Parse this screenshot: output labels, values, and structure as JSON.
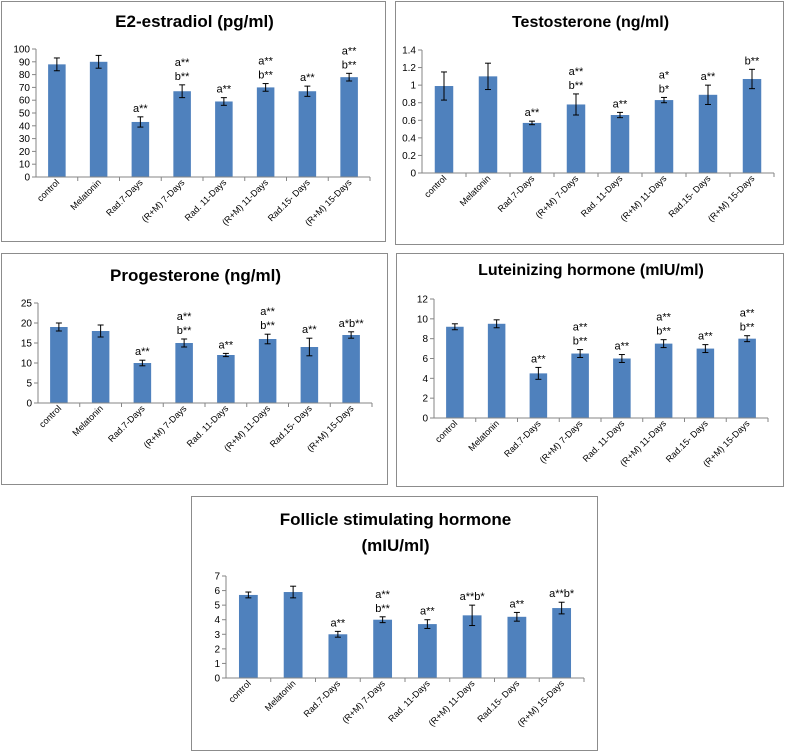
{
  "colors": {
    "bar": "#4f81bd",
    "axis": "#868686",
    "border": "#8c8c8c",
    "text": "#000000"
  },
  "chart_data": [
    {
      "type": "bar",
      "title": "E2-estradiol (pg/ml)",
      "title_lines": [
        "E2-estradiol (pg/ml)"
      ],
      "xlabel": "",
      "ylabel": "",
      "ylim": [
        0,
        100
      ],
      "yticks": [
        0,
        10,
        20,
        30,
        40,
        50,
        60,
        70,
        80,
        90,
        100
      ],
      "ytick_labels": [
        "0",
        "10",
        "20",
        "30",
        "40",
        "50",
        "60",
        "70",
        "80",
        "90",
        "100"
      ],
      "categories": [
        "control",
        "Melatonin",
        "Rad.7-Days",
        "(R+M) 7-Days",
        "Rad. 11-Days",
        "(R+M)  11-Days",
        "Rad.15- Days",
        "(R+M) 15-Days"
      ],
      "values": [
        88,
        90,
        43,
        67,
        59,
        70,
        67,
        78
      ],
      "errors": [
        5,
        5,
        4,
        5,
        3,
        3,
        4,
        3
      ],
      "annotations": [
        [],
        [],
        [
          "a**"
        ],
        [
          "a**",
          "b**"
        ],
        [
          "a**"
        ],
        [
          "a**",
          "b**"
        ],
        [
          "a**"
        ],
        [
          "a**",
          "b**"
        ]
      ]
    },
    {
      "type": "bar",
      "title": "Testosterone (ng/ml)",
      "title_lines": [
        "Testosterone (ng/ml)"
      ],
      "xlabel": "",
      "ylabel": "",
      "ylim": [
        0,
        1.4
      ],
      "yticks": [
        0,
        0.2,
        0.4,
        0.6,
        0.8,
        1,
        1.2,
        1.4
      ],
      "ytick_labels": [
        "0",
        "0.2",
        "0.4",
        "0.6",
        "0.8",
        "1",
        "1.2",
        "1.4"
      ],
      "categories": [
        "control",
        "Melatonin",
        "Rad.7-Days",
        "(R+M) 7-Days",
        "Rad. 11-Days",
        "(R+M)  11-Days",
        "Rad.15- Days",
        "(R+M) 15-Days"
      ],
      "values": [
        0.99,
        1.1,
        0.57,
        0.78,
        0.66,
        0.83,
        0.89,
        1.07
      ],
      "errors": [
        0.16,
        0.15,
        0.02,
        0.12,
        0.03,
        0.03,
        0.11,
        0.11
      ],
      "annotations": [
        [],
        [],
        [
          "a**"
        ],
        [
          "a**",
          "b**"
        ],
        [
          "a**"
        ],
        [
          "a*",
          "b*"
        ],
        [
          "a**"
        ],
        [
          "b**"
        ]
      ]
    },
    {
      "type": "bar",
      "title": "Progesterone (ng/ml)",
      "title_lines": [
        "Progesterone (ng/ml)"
      ],
      "xlabel": "",
      "ylabel": "",
      "ylim": [
        0,
        25
      ],
      "yticks": [
        0,
        5,
        10,
        15,
        20,
        25
      ],
      "ytick_labels": [
        "0",
        "5",
        "10",
        "15",
        "20",
        "25"
      ],
      "categories": [
        "control",
        "Melatonin",
        "Rad.7-Days",
        "(R+M) 7-Days",
        "Rad. 11-Days",
        "(R+M)  11-Days",
        "Rad.15- Days",
        "(R+M) 15-Days"
      ],
      "values": [
        19,
        18,
        10,
        15,
        12,
        16,
        14,
        17
      ],
      "errors": [
        1,
        1.5,
        0.7,
        1,
        0.4,
        1.2,
        2.2,
        0.8
      ],
      "annotations": [
        [],
        [],
        [
          "a**"
        ],
        [
          "a**",
          "b**"
        ],
        [
          "a**"
        ],
        [
          "a**",
          "b**"
        ],
        [
          "a**"
        ],
        [
          "a*b**"
        ]
      ]
    },
    {
      "type": "bar",
      "title": "Luteinizing hormone (mIU/ml)",
      "title_lines": [
        "Luteinizing hormone (mIU/ml)"
      ],
      "xlabel": "",
      "ylabel": "",
      "ylim": [
        0,
        12
      ],
      "yticks": [
        0,
        2,
        4,
        6,
        8,
        10,
        12
      ],
      "ytick_labels": [
        "0",
        "2",
        "4",
        "6",
        "8",
        "10",
        "12"
      ],
      "categories": [
        "control",
        "Melatonin",
        "Rad.7-Days",
        "(R+M) 7-Days",
        "Rad. 11-Days",
        "(R+M)  11-Days",
        "Rad.15- Days",
        "(R+M) 15-Days"
      ],
      "values": [
        9.2,
        9.5,
        4.5,
        6.5,
        6,
        7.5,
        7,
        8
      ],
      "errors": [
        0.3,
        0.4,
        0.6,
        0.4,
        0.4,
        0.4,
        0.4,
        0.3
      ],
      "annotations": [
        [],
        [],
        [
          "a**"
        ],
        [
          "a**",
          "b**"
        ],
        [
          "a**"
        ],
        [
          "a**",
          "b**"
        ],
        [
          "a**"
        ],
        [
          "a**",
          "b**"
        ]
      ]
    },
    {
      "type": "bar",
      "title": "Follicle stimulating hormone (mIU/ml)",
      "title_lines": [
        "Follicle stimulating hormone",
        "(mIU/ml)"
      ],
      "xlabel": "",
      "ylabel": "",
      "ylim": [
        0,
        7
      ],
      "yticks": [
        0,
        1,
        2,
        3,
        4,
        5,
        6,
        7
      ],
      "ytick_labels": [
        "0",
        "1",
        "2",
        "3",
        "4",
        "5",
        "6",
        "7"
      ],
      "categories": [
        "control",
        "Melatonin",
        "Rad.7-Days",
        "(R+M) 7-Days",
        "Rad. 11-Days",
        "(R+M)  11-Days",
        "Rad.15- Days",
        "(R+M) 15-Days"
      ],
      "values": [
        5.7,
        5.9,
        3,
        4,
        3.7,
        4.3,
        4.2,
        4.8
      ],
      "errors": [
        0.2,
        0.4,
        0.2,
        0.2,
        0.3,
        0.7,
        0.3,
        0.4
      ],
      "annotations": [
        [],
        [],
        [
          "a**"
        ],
        [
          "a**",
          "b**"
        ],
        [
          "a**"
        ],
        [
          "a**b*"
        ],
        [
          "a**"
        ],
        [
          "a**b*"
        ]
      ]
    }
  ]
}
